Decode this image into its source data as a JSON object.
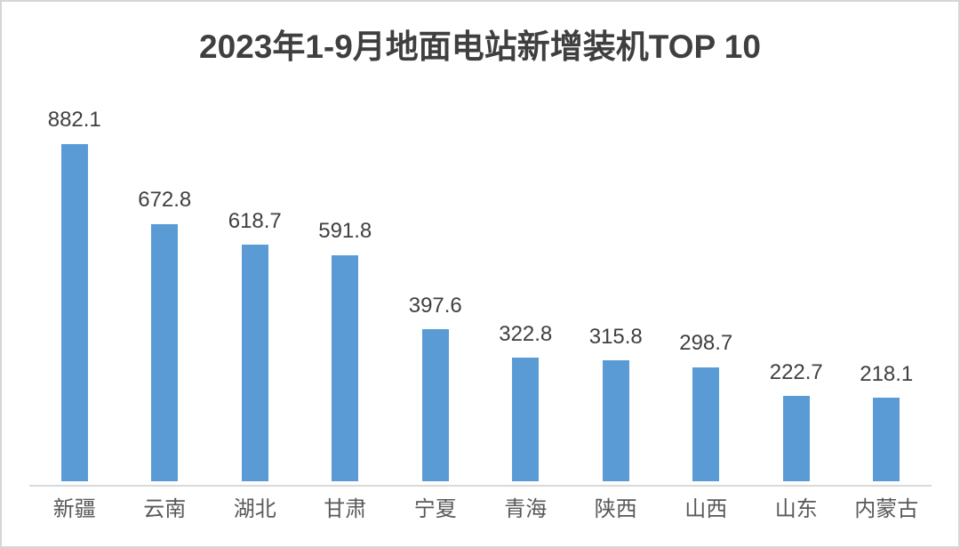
{
  "chart_data": {
    "type": "bar",
    "title": "2023年1-9月地面电站新增装机TOP 10",
    "categories": [
      "新疆",
      "云南",
      "湖北",
      "甘肃",
      "宁夏",
      "青海",
      "陕西",
      "山西",
      "山东",
      "内蒙古"
    ],
    "values": [
      882.1,
      672.8,
      618.7,
      591.8,
      397.6,
      322.8,
      315.8,
      298.7,
      222.7,
      218.1
    ],
    "data_labels_visible": true,
    "xlabel": "",
    "ylabel": "",
    "ylim": [
      0,
      1000
    ],
    "grid": false,
    "legend": false,
    "colors": {
      "bar": "#5B9BD5",
      "title_text": "#3f3f3f",
      "value_label_text": "#404040",
      "category_label_text": "#595959",
      "axis_line": "#d9d9d9",
      "canvas_border": "#d6d6d6",
      "background": "#ffffff"
    }
  }
}
